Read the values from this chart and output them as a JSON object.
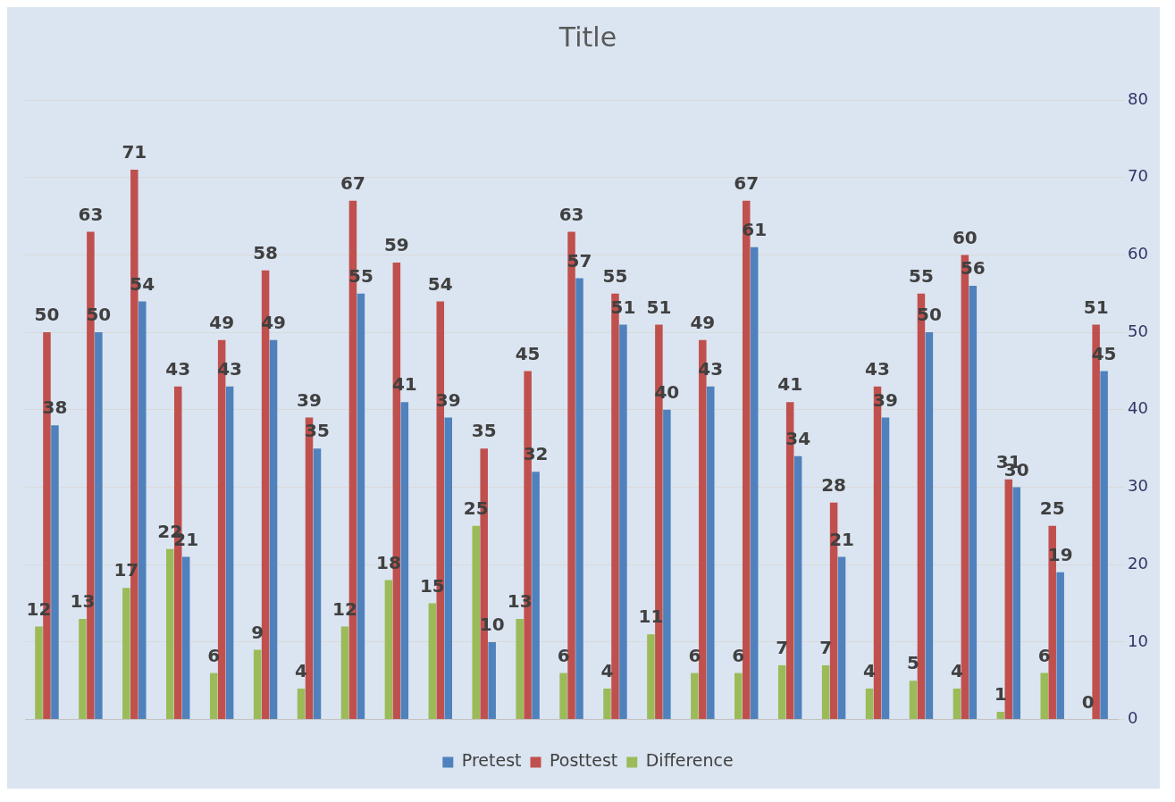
{
  "chart_data": {
    "type": "bar",
    "title": "Title",
    "categories": [
      null,
      null,
      null,
      null,
      null,
      null,
      null,
      null,
      null,
      null,
      null,
      null,
      null,
      null,
      null,
      null,
      null,
      null,
      null,
      null,
      null,
      null,
      null,
      null,
      null
    ],
    "series": [
      {
        "name": "Pretest",
        "color": "#4f81bd",
        "values": [
          38,
          50,
          54,
          21,
          43,
          49,
          35,
          55,
          41,
          39,
          10,
          32,
          57,
          51,
          40,
          43,
          61,
          34,
          21,
          39,
          50,
          56,
          30,
          19,
          45
        ]
      },
      {
        "name": "Posttest",
        "color": "#c0504d",
        "values": [
          50,
          63,
          71,
          43,
          49,
          58,
          39,
          67,
          59,
          54,
          35,
          45,
          63,
          55,
          51,
          49,
          67,
          41,
          28,
          43,
          55,
          60,
          31,
          25,
          51
        ]
      },
      {
        "name": "Difference",
        "color": "#9bbb59",
        "values": [
          12,
          13,
          17,
          22,
          6,
          9,
          4,
          12,
          18,
          15,
          25,
          13,
          6,
          4,
          11,
          6,
          6,
          7,
          7,
          4,
          5,
          4,
          1,
          6,
          0
        ]
      }
    ],
    "ylim": [
      0,
      80
    ],
    "yticks": [
      0,
      10,
      20,
      30,
      40,
      50,
      60,
      70,
      80
    ],
    "grid": "y",
    "legend": "bottom",
    "data_labels": true
  }
}
